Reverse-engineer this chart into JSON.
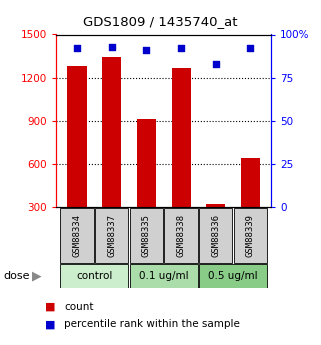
{
  "title": "GDS1809 / 1435740_at",
  "samples": [
    "GSM88334",
    "GSM88337",
    "GSM88335",
    "GSM88338",
    "GSM88336",
    "GSM88339"
  ],
  "counts": [
    1280,
    1340,
    910,
    1270,
    320,
    640
  ],
  "percentiles": [
    92,
    93,
    91,
    92,
    83,
    92
  ],
  "groups": [
    {
      "label": "control",
      "indices": [
        0,
        1
      ],
      "color": "#cceecc"
    },
    {
      "label": "0.1 ug/ml",
      "indices": [
        2,
        3
      ],
      "color": "#aaddaa"
    },
    {
      "label": "0.5 ug/ml",
      "indices": [
        4,
        5
      ],
      "color": "#88cc88"
    }
  ],
  "bar_color": "#cc0000",
  "dot_color": "#0000cc",
  "ylim_left": [
    300,
    1500
  ],
  "ylim_right": [
    0,
    100
  ],
  "yticks_left": [
    300,
    600,
    900,
    1200,
    1500
  ],
  "yticks_right": [
    0,
    25,
    50,
    75,
    100
  ],
  "ytick_labels_right": [
    "0",
    "25",
    "50",
    "75",
    "100%"
  ],
  "grid_values": [
    600,
    900,
    1200
  ],
  "sample_box_color": "#d0d0d0",
  "legend_count_label": "count",
  "legend_pct_label": "percentile rank within the sample",
  "dose_label": "dose"
}
